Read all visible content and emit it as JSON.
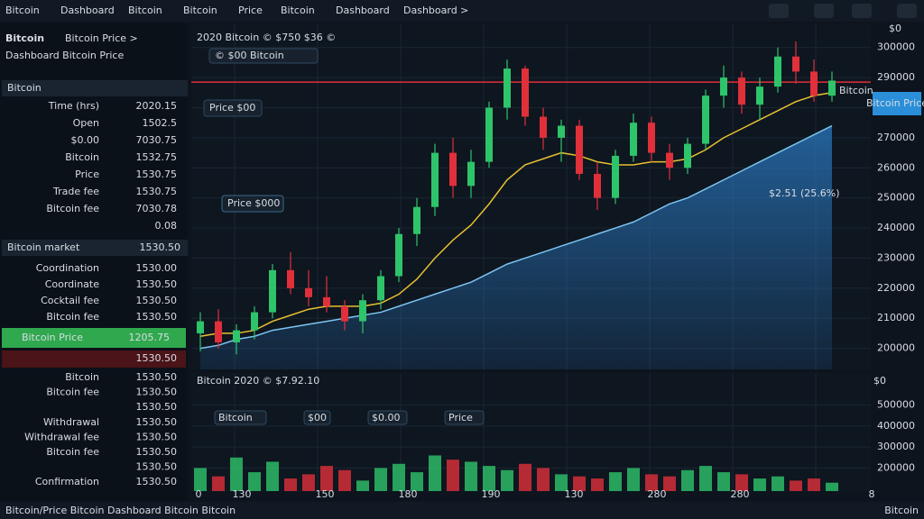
{
  "top_bar": {
    "tabs": [
      "Bitcoin",
      "Dashboard",
      "Bitcoin",
      "Bitcoin",
      "Price",
      "Bitcoin",
      "Dashboard",
      "Dashboard >"
    ]
  },
  "sidebar": {
    "title": "Bitcoin",
    "subtitle": "Bitcoin Price >",
    "heading": "Dashboard Bitcoin Price",
    "section1": "Bitcoin",
    "rows1": [
      {
        "label": "Time (hrs)",
        "value": "2020.15",
        "color": "#e04848"
      },
      {
        "label": "Open",
        "value": "1502.5",
        "color": "#48d070"
      },
      {
        "label": "$0.00",
        "value": "7030.75",
        "color": "#e04848"
      },
      {
        "label": "Bitcoin",
        "value": "1532.75",
        "color": "#e04848"
      },
      {
        "label": "Price",
        "value": "1530.75",
        "color": "#e04848"
      },
      {
        "label": "Trade fee",
        "value": "1530.75",
        "color": "#e04848"
      },
      {
        "label": "Bitcoin fee",
        "value": "7030.78",
        "color": "#48d070"
      },
      {
        "value": "0.08",
        "color": "#e04848"
      }
    ],
    "section2": {
      "label": "Bitcoin market",
      "value": "1530.50"
    },
    "rows2": [
      {
        "label": "Coordination",
        "value": "1530.00",
        "color": "#48d070"
      },
      {
        "label": "Coordinate",
        "value": "1530.50",
        "color": "#48d070"
      },
      {
        "label": "Cocktail fee",
        "value": "1530.50",
        "color": "#48d070"
      },
      {
        "label": "Bitcoin fee",
        "value": "1530.50",
        "color": "#e04848"
      }
    ],
    "highlight": {
      "label": "Bitcoin Price",
      "value": "1205.75"
    },
    "highlight2": "1530.50",
    "rows3": [
      {
        "label": "Bitcoin",
        "value": "1530.50",
        "color": "#e04848"
      },
      {
        "label": "Bitcoin fee",
        "value": "1530.50",
        "color": "#e04848"
      },
      {
        "value": "1530.50",
        "color": "#e04848"
      },
      {
        "label": "Withdrawal",
        "value": "1530.50",
        "color": "#e04848"
      },
      {
        "label": "Withdrawal fee",
        "value": "1530.50",
        "color": "#48d070"
      },
      {
        "label": "Bitcoin fee",
        "value": "1530.50",
        "color": "#48d070"
      },
      {
        "value": "1530.50",
        "color": "#e04848"
      },
      {
        "label": "Confirmation",
        "value": "1530.50",
        "color": "#48d070"
      }
    ]
  },
  "chart": {
    "header": "2020 Bitcoin © $750 $36 ©",
    "tag": "© $00 Bitcoin",
    "box1": "Price $00",
    "box2": "Price $000",
    "area_label": "$2.51 (25.6%)",
    "price_box": "Bitcoin Price",
    "axis_unit": "$0",
    "ylim": [
      193000,
      308000
    ],
    "yticks": [
      300000,
      290000,
      280000,
      270000,
      260000,
      250000,
      240000,
      230000,
      220000,
      210000,
      200000
    ],
    "up_color": "#2ec46a",
    "down_color": "#e0303a",
    "candles": [
      [
        205000,
        212000,
        199000,
        209000
      ],
      [
        209000,
        213000,
        200000,
        202000
      ],
      [
        202000,
        208000,
        198000,
        206000
      ],
      [
        206000,
        214000,
        203000,
        212000
      ],
      [
        212000,
        228000,
        210000,
        226000
      ],
      [
        226000,
        232000,
        218000,
        220000
      ],
      [
        220000,
        226000,
        214000,
        217000
      ],
      [
        217000,
        224000,
        212000,
        214000
      ],
      [
        214000,
        216000,
        206000,
        209000
      ],
      [
        209000,
        218000,
        205000,
        216000
      ],
      [
        216000,
        226000,
        213000,
        224000
      ],
      [
        224000,
        240000,
        222000,
        238000
      ],
      [
        238000,
        250000,
        234000,
        247000
      ],
      [
        247000,
        268000,
        244000,
        265000
      ],
      [
        265000,
        270000,
        250000,
        254000
      ],
      [
        254000,
        266000,
        250000,
        262000
      ],
      [
        262000,
        282000,
        260000,
        280000
      ],
      [
        280000,
        296000,
        276000,
        293000
      ],
      [
        293000,
        294000,
        274000,
        277000
      ],
      [
        277000,
        280000,
        266000,
        270000
      ],
      [
        270000,
        276000,
        262000,
        274000
      ],
      [
        274000,
        276000,
        256000,
        258000
      ],
      [
        258000,
        262000,
        246000,
        250000
      ],
      [
        250000,
        266000,
        248000,
        264000
      ],
      [
        264000,
        278000,
        262000,
        275000
      ],
      [
        275000,
        277000,
        262000,
        265000
      ],
      [
        265000,
        268000,
        256000,
        260000
      ],
      [
        260000,
        270000,
        258000,
        268000
      ],
      [
        268000,
        286000,
        266000,
        284000
      ],
      [
        284000,
        294000,
        280000,
        290000
      ],
      [
        290000,
        292000,
        278000,
        281000
      ],
      [
        281000,
        290000,
        276000,
        287000
      ],
      [
        287000,
        300000,
        285000,
        297000
      ],
      [
        297000,
        302000,
        288000,
        292000
      ],
      [
        292000,
        296000,
        282000,
        284000
      ],
      [
        284000,
        292000,
        282000,
        289000
      ]
    ],
    "ma": {
      "color": "#e8c030",
      "values": [
        204000,
        205000,
        205000,
        206000,
        209000,
        211000,
        213000,
        214000,
        214000,
        214000,
        215000,
        218000,
        223000,
        230000,
        236000,
        241000,
        248000,
        256000,
        261000,
        263000,
        265000,
        264000,
        262000,
        261000,
        261000,
        262000,
        262000,
        263000,
        266000,
        270000,
        273000,
        276000,
        279000,
        282000,
        284000,
        285000
      ]
    },
    "area": {
      "color": "#2a78c0",
      "values": [
        200000,
        201000,
        203000,
        204000,
        206000,
        207000,
        208000,
        209000,
        210000,
        211000,
        212000,
        214000,
        216000,
        218000,
        220000,
        222000,
        225000,
        228000,
        230000,
        232000,
        234000,
        236000,
        238000,
        240000,
        242000,
        245000,
        248000,
        250000,
        253000,
        256000,
        259000,
        262000,
        265000,
        268000,
        271000,
        274000
      ]
    },
    "resistance": {
      "value": 288500,
      "label": "Bitcoin",
      "color": "#e0303a"
    }
  },
  "volume": {
    "header": "Bitcoin 2020 © $7.92.10",
    "tags": [
      "Bitcoin",
      "$00",
      "$0.00",
      "Price"
    ],
    "axis_unit": "$0",
    "ylim": [
      90000,
      520000
    ],
    "yticks": [
      500000,
      400000,
      300000,
      200000
    ],
    "values": [
      200000,
      160000,
      250000,
      180000,
      230000,
      150000,
      170000,
      210000,
      190000,
      140000,
      200000,
      220000,
      180000,
      260000,
      240000,
      230000,
      210000,
      190000,
      220000,
      200000,
      170000,
      160000,
      150000,
      180000,
      200000,
      170000,
      160000,
      190000,
      210000,
      180000,
      170000,
      150000,
      160000,
      140000,
      150000,
      130000
    ]
  },
  "x_labels": [
    "0",
    "130",
    "150",
    "180",
    "190",
    "130",
    "280",
    "280",
    "8"
  ],
  "footer": {
    "left": "Bitcoin/Price Bitcoin Dashboard Bitcoin Bitcoin",
    "right": "Bitcoin"
  }
}
